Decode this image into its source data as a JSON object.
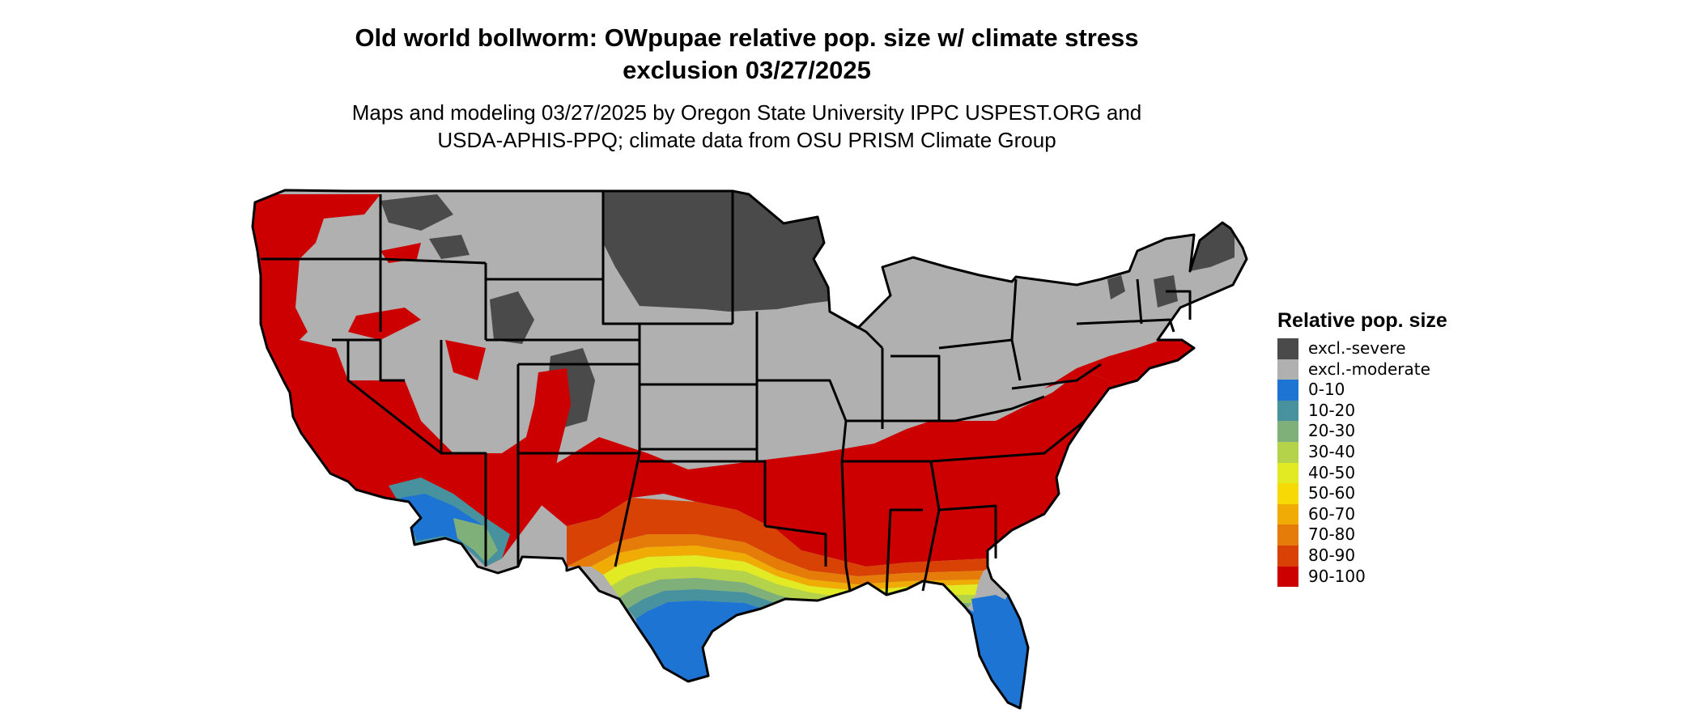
{
  "title": {
    "line1": "Old world bollworm: OWpupae relative pop. size w/ climate stress",
    "line2": "exclusion 03/27/2025"
  },
  "subtitle": {
    "line1": "Maps and modeling 03/27/2025 by Oregon State University IPPC USPEST.ORG and",
    "line2": "USDA-APHIS-PPQ; climate data from OSU PRISM Climate Group"
  },
  "legend": {
    "title": "Relative pop. size",
    "items": [
      {
        "label": "excl.-severe",
        "color": "#4a4a4a"
      },
      {
        "label": "excl.-moderate",
        "color": "#b0b0b0"
      },
      {
        "label": "0-10",
        "color": "#1e74d2"
      },
      {
        "label": "10-20",
        "color": "#4892a0"
      },
      {
        "label": "20-30",
        "color": "#7fb07a"
      },
      {
        "label": "30-40",
        "color": "#b4d24a"
      },
      {
        "label": "40-50",
        "color": "#e2ea23"
      },
      {
        "label": "50-60",
        "color": "#f6da05"
      },
      {
        "label": "60-70",
        "color": "#f0ac05"
      },
      {
        "label": "70-80",
        "color": "#e57b08"
      },
      {
        "label": "80-90",
        "color": "#d94205"
      },
      {
        "label": "90-100",
        "color": "#cc0000"
      }
    ]
  },
  "colors": {
    "border": "#000000",
    "water": "#ffffff"
  }
}
